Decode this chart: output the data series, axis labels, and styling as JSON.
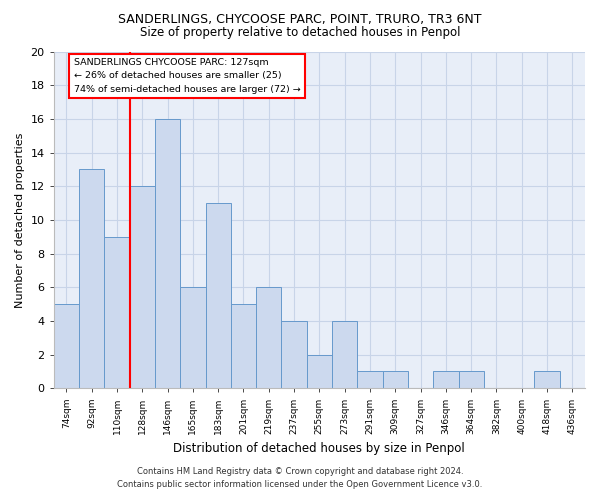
{
  "title1": "SANDERLINGS, CHYCOOSE PARC, POINT, TRURO, TR3 6NT",
  "title2": "Size of property relative to detached houses in Penpol",
  "xlabel": "Distribution of detached houses by size in Penpol",
  "ylabel": "Number of detached properties",
  "categories": [
    "74sqm",
    "92sqm",
    "110sqm",
    "128sqm",
    "146sqm",
    "165sqm",
    "183sqm",
    "201sqm",
    "219sqm",
    "237sqm",
    "255sqm",
    "273sqm",
    "291sqm",
    "309sqm",
    "327sqm",
    "346sqm",
    "364sqm",
    "382sqm",
    "400sqm",
    "418sqm",
    "436sqm"
  ],
  "values": [
    5,
    13,
    9,
    12,
    16,
    6,
    11,
    5,
    6,
    4,
    2,
    4,
    1,
    1,
    0,
    1,
    1,
    0,
    0,
    1,
    0
  ],
  "bar_color": "#ccd9ee",
  "bar_edge_color": "#6699cc",
  "ylim": [
    0,
    20
  ],
  "yticks": [
    0,
    2,
    4,
    6,
    8,
    10,
    12,
    14,
    16,
    18,
    20
  ],
  "red_line_index": 3,
  "annotation_title": "SANDERLINGS CHYCOOSE PARC: 127sqm",
  "annotation_line1": "← 26% of detached houses are smaller (25)",
  "annotation_line2": "74% of semi-detached houses are larger (72) →",
  "footer1": "Contains HM Land Registry data © Crown copyright and database right 2024.",
  "footer2": "Contains public sector information licensed under the Open Government Licence v3.0.",
  "bg_color": "#ffffff",
  "plot_bg_color": "#e8eef8",
  "grid_color": "#c8d4e8"
}
